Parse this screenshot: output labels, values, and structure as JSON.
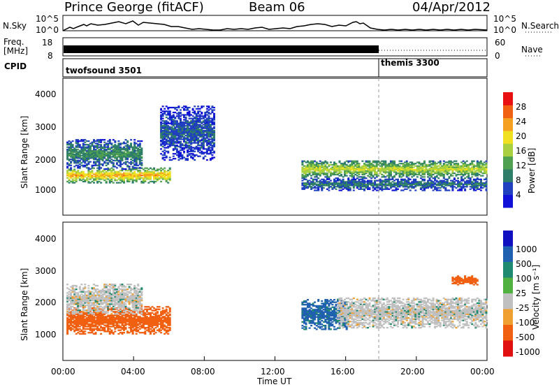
{
  "header": {
    "station": "Prince George (fitACF)",
    "beam": "Beam 06",
    "date": "04/Apr/2012"
  },
  "top_panels": {
    "nsky_label": "N.Sky",
    "nsky_ticks": [
      "10^5",
      "10^0"
    ],
    "freq_label_1": "Freq.",
    "freq_label_2": "[MHz]",
    "freq_ticks": [
      "18",
      "8"
    ],
    "right_ticks_1": [
      "10^5",
      "10^0"
    ],
    "right_ticks_2": [
      "60",
      "0"
    ],
    "nsearch_label": "N.Search",
    "nave_label": "Nave",
    "cpid_label": "CPID",
    "cpid_1": "twofsound 3501",
    "cpid_2": "themis 3300"
  },
  "x_axis": {
    "label": "Time UT",
    "ticks": [
      "00:00",
      "04:00",
      "08:00",
      "12:00",
      "16:00",
      "20:00",
      "00:00"
    ]
  },
  "power_panel": {
    "ylabel": "Slant Range [km]",
    "yticks": [
      "4000",
      "3000",
      "2000",
      "1000"
    ],
    "colorbar_label": "Power [dB]",
    "colorbar_ticks": [
      "28",
      "24",
      "20",
      "16",
      "12",
      "8",
      "4"
    ],
    "colors": [
      "#1010d8",
      "#2040c0",
      "#2e7e6a",
      "#4fa050",
      "#a8d040",
      "#f0e020",
      "#f5a020",
      "#f06010",
      "#e81010"
    ]
  },
  "velocity_panel": {
    "ylabel": "Slant Range [km]",
    "yticks": [
      "4000",
      "3000",
      "2000",
      "1000"
    ],
    "colorbar_label": "Velocity [m s⁻¹]",
    "colorbar_ticks": [
      "1000",
      "500",
      "100",
      "25",
      "-25",
      "-100",
      "-500",
      "-1000"
    ],
    "colors": [
      "#1010c0",
      "#2060b0",
      "#208a70",
      "#50b040",
      "#c0c0c0",
      "#f0a030",
      "#f06010",
      "#e01010"
    ]
  },
  "chart_data": {
    "type": "heatmap",
    "title": "Prince George (fitACF) Beam 06 04/Apr/2012",
    "xlabel": "Time UT",
    "ylabel": "Slant Range [km]",
    "xlim_hours": [
      0,
      24
    ],
    "ylim_km": [
      0,
      4500
    ],
    "mode_change_time_hours": 18,
    "power_bands": [
      {
        "t0": 0.2,
        "t1": 6.0,
        "r_center": 1300,
        "r_width": 250,
        "level_db": 26
      },
      {
        "t0": 0.2,
        "t1": 4.5,
        "r_center": 2000,
        "r_width": 500,
        "level_db": 12
      },
      {
        "t0": 5.5,
        "t1": 8.5,
        "r_center": 2700,
        "r_width": 900,
        "level_db": 8
      },
      {
        "t0": 13.5,
        "t1": 24.0,
        "r_center": 1500,
        "r_width": 300,
        "level_db": 20
      },
      {
        "t0": 13.5,
        "t1": 24.0,
        "r_center": 1000,
        "r_width": 200,
        "level_db": 10
      }
    ],
    "velocity_bands": [
      {
        "t0": 0.2,
        "t1": 6.0,
        "r_center": 1300,
        "r_width": 450,
        "velocity": -150
      },
      {
        "t0": 0.2,
        "t1": 4.5,
        "r_center": 2000,
        "r_width": 500,
        "velocity": 0
      },
      {
        "t0": 13.5,
        "t1": 16.0,
        "r_center": 1500,
        "r_width": 500,
        "velocity": 120
      },
      {
        "t0": 15.5,
        "t1": 24.0,
        "r_center": 1550,
        "r_width": 500,
        "velocity": 0
      },
      {
        "t0": 22.0,
        "t1": 23.5,
        "r_center": 2600,
        "r_width": 150,
        "velocity": -300
      }
    ]
  }
}
